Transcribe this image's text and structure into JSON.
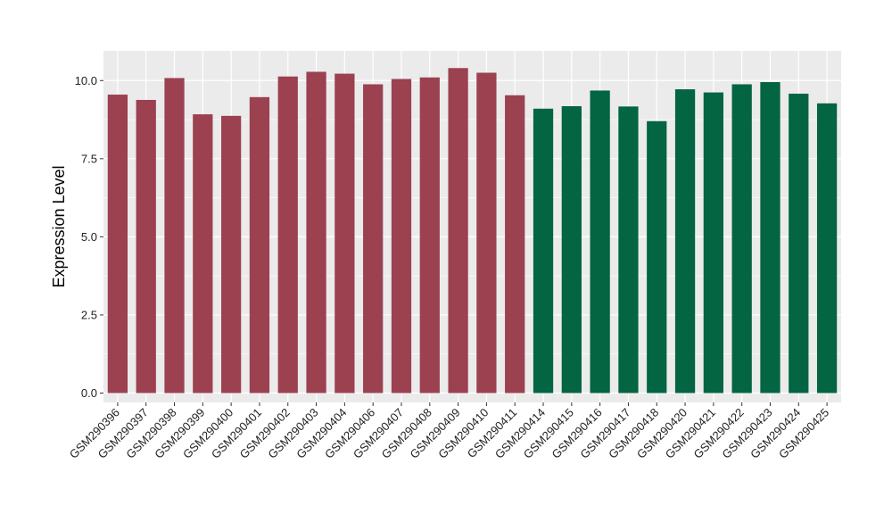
{
  "chart_data": {
    "type": "bar",
    "title": "",
    "xlabel": "",
    "ylabel": "Expression Level",
    "ylim": [
      -0.3,
      10.95
    ],
    "yticks": [
      0.0,
      2.5,
      5.0,
      7.5,
      10.0
    ],
    "ytick_labels": [
      "0.0",
      "2.5",
      "5.0",
      "7.5",
      "10.0"
    ],
    "grid": true,
    "legend": "none",
    "panel_background": "#ebebeb",
    "grid_color": "#ffffff",
    "group_colors": [
      "#9b4150",
      "#036541"
    ],
    "categories": [
      "GSM290396",
      "GSM290397",
      "GSM290398",
      "GSM290399",
      "GSM290400",
      "GSM290401",
      "GSM290402",
      "GSM290403",
      "GSM290404",
      "GSM290406",
      "GSM290407",
      "GSM290408",
      "GSM290409",
      "GSM290410",
      "GSM290411",
      "GSM290414",
      "GSM290415",
      "GSM290416",
      "GSM290417",
      "GSM290418",
      "GSM290420",
      "GSM290421",
      "GSM290422",
      "GSM290423",
      "GSM290424",
      "GSM290425"
    ],
    "values": [
      9.55,
      9.38,
      10.08,
      8.92,
      8.87,
      9.47,
      10.13,
      10.28,
      10.22,
      9.88,
      10.05,
      10.1,
      10.4,
      10.25,
      9.53,
      9.1,
      9.18,
      9.68,
      9.17,
      8.7,
      9.72,
      9.62,
      9.88,
      9.95,
      9.58,
      9.27
    ],
    "groups": [
      0,
      0,
      0,
      0,
      0,
      0,
      0,
      0,
      0,
      0,
      0,
      0,
      0,
      0,
      0,
      1,
      1,
      1,
      1,
      1,
      1,
      1,
      1,
      1,
      1,
      1
    ]
  }
}
